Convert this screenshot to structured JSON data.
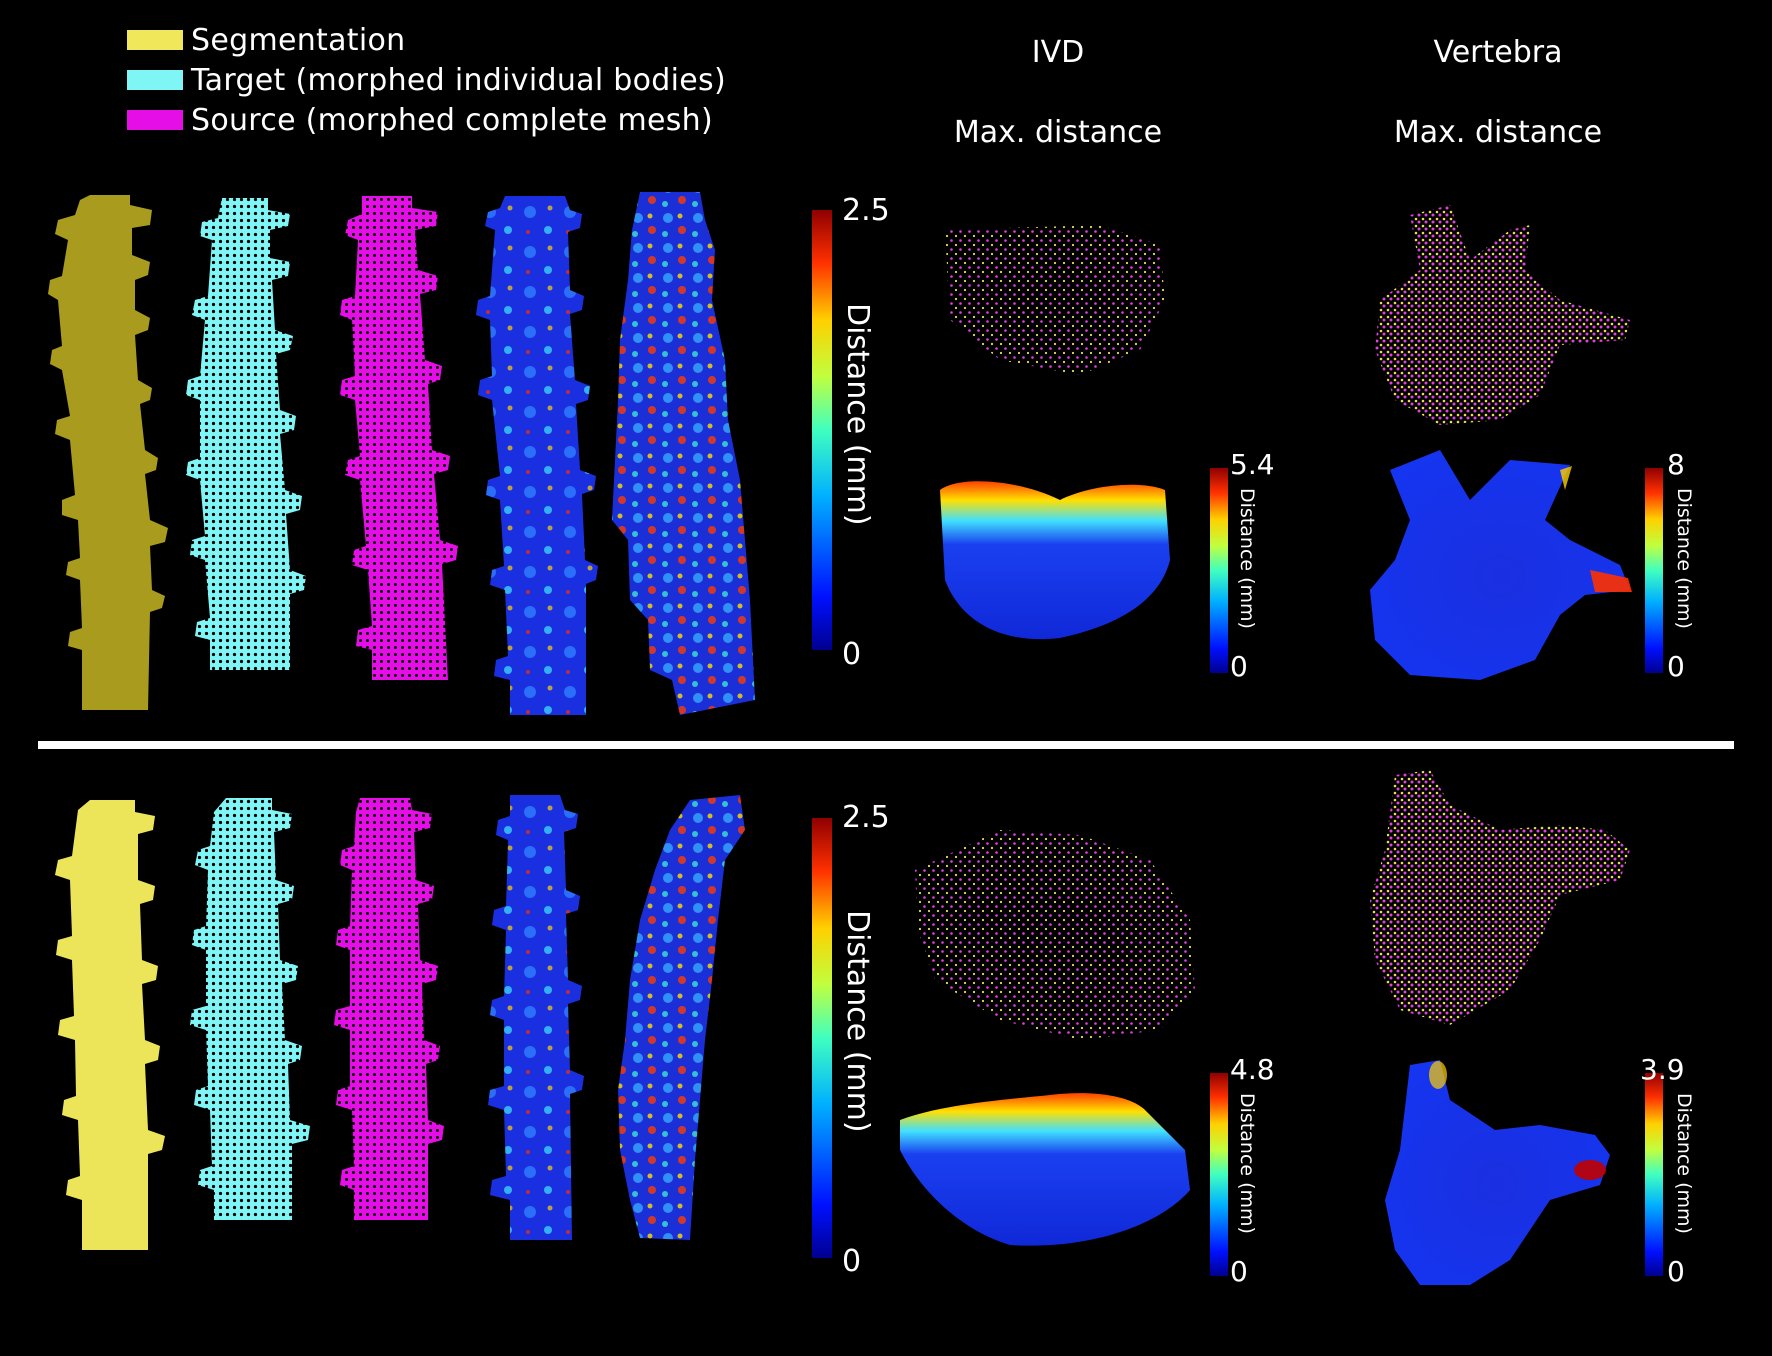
{
  "legend": {
    "items": [
      {
        "label": "Segmentation",
        "color": "#f0e85a"
      },
      {
        "label": "Target (morphed individual bodies)",
        "color": "#7ff5f5"
      },
      {
        "label": "Source (morphed complete mesh)",
        "color": "#e60ee6"
      }
    ]
  },
  "columns": {
    "ivd": {
      "title": "IVD",
      "subtitle": "Max. distance"
    },
    "vertebra": {
      "title": "Vertebra",
      "subtitle": "Max. distance"
    }
  },
  "top": {
    "spine_colorbar": {
      "max": "2.5",
      "min": "0",
      "title": "Distance (mm)"
    },
    "ivd_colorbar": {
      "max": "5.4",
      "min": "0",
      "title": "Distance (mm)"
    },
    "vertebra_colorbar": {
      "max": "8",
      "min": "0",
      "title": "Distance (mm)"
    }
  },
  "bottom": {
    "spine_colorbar": {
      "max": "2.5",
      "min": "0",
      "title": "Distance (mm)"
    },
    "ivd_colorbar": {
      "max": "4.8",
      "min": "0",
      "title": "Distance (mm)"
    },
    "vertebra_colorbar": {
      "max": "3.9",
      "min": "0",
      "title": "Distance (mm)"
    }
  },
  "colors": {
    "segmentation_top": "#a89b1e",
    "segmentation_bottom": "#ece55a",
    "target": "#7ff5f5",
    "source": "#e60ee6",
    "heat_low": "#1020d0",
    "heat_high": "#b00000",
    "divider": "#ffffff"
  }
}
